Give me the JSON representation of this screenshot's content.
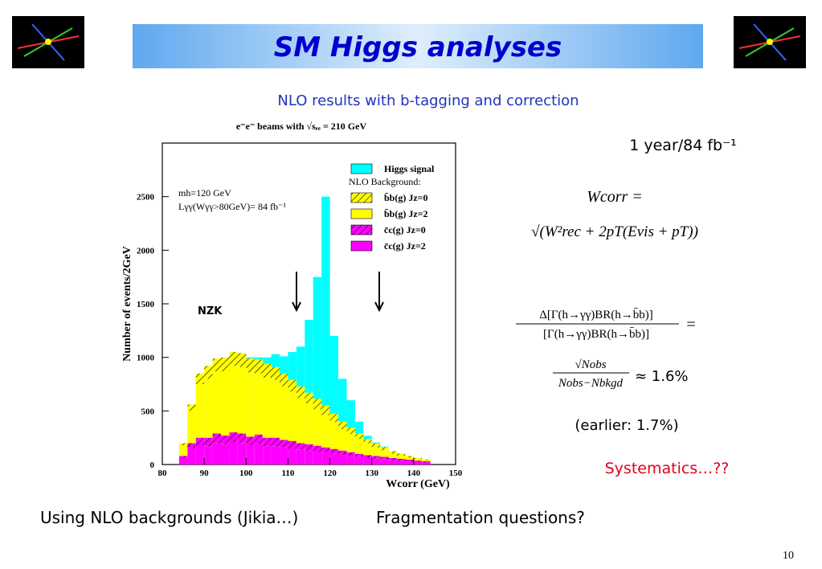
{
  "header": {
    "title": "SM Higgs analyses"
  },
  "figure": {
    "title": "NLO results with b-tagging and correction"
  },
  "chart_data": {
    "type": "histogram",
    "title": "e⁻e⁻ beams with √sₑₑ = 210 GeV",
    "x_label": "Wcorr (GeV)",
    "y_label": "Number of events/2GeV",
    "stacked": true,
    "bins": [
      84,
      86,
      88,
      90,
      92,
      94,
      96,
      98,
      100,
      102,
      104,
      106,
      108,
      110,
      112,
      114,
      116,
      118,
      120,
      122,
      124,
      126,
      128,
      130,
      132,
      134,
      136,
      138,
      140,
      142,
      144
    ],
    "series": [
      {
        "name": "c̄c(g) Jz=2",
        "color": "#ff00ff",
        "hatch": false,
        "values": [
          60,
          150,
          180,
          170,
          200,
          190,
          210,
          200,
          180,
          190,
          170,
          170,
          160,
          150,
          140,
          130,
          120,
          110,
          100,
          90,
          80,
          70,
          60,
          55,
          50,
          40,
          35,
          30,
          25,
          20
        ]
      },
      {
        "name": "c̄c(g) Jz=0",
        "color": "#ff00ff",
        "hatch": true,
        "values": [
          20,
          50,
          70,
          80,
          90,
          80,
          90,
          90,
          80,
          90,
          80,
          80,
          70,
          70,
          60,
          60,
          55,
          50,
          45,
          40,
          35,
          30,
          28,
          25,
          22,
          20,
          18,
          15,
          12,
          10
        ]
      },
      {
        "name": "b̄b(g) Jz=2",
        "color": "#ffff00",
        "hatch": false,
        "values": [
          100,
          300,
          500,
          550,
          580,
          600,
          620,
          620,
          600,
          570,
          560,
          540,
          500,
          460,
          420,
          380,
          340,
          300,
          250,
          200,
          170,
          140,
          110,
          80,
          60,
          40,
          30,
          20,
          15,
          10
        ]
      },
      {
        "name": "b̄b(g) Jz=0",
        "color": "#ffff00",
        "hatch": true,
        "values": [
          20,
          60,
          100,
          120,
          120,
          130,
          130,
          130,
          130,
          130,
          130,
          120,
          120,
          110,
          110,
          100,
          100,
          90,
          80,
          70,
          60,
          50,
          40,
          35,
          30,
          25,
          20,
          15,
          10,
          8
        ]
      },
      {
        "name": "Higgs signal",
        "color": "#00ffff",
        "hatch": false,
        "values": [
          0,
          0,
          0,
          0,
          0,
          0,
          0,
          0,
          10,
          20,
          60,
          120,
          160,
          260,
          370,
          680,
          1135,
          1950,
          725,
          400,
          255,
          110,
          30,
          10,
          5,
          0,
          0,
          0,
          0,
          0
        ]
      }
    ],
    "legend_title": "NLO Background:",
    "annotations": [
      "mh=120 GeV",
      "Lγγ(Wγγ>80GeV)= 84 fb⁻¹",
      "NZK"
    ],
    "xlim": [
      80,
      150
    ],
    "xticks": [
      80,
      90,
      100,
      110,
      120,
      130,
      140,
      150
    ],
    "ylim": [
      0,
      3000
    ],
    "yticks": [
      0,
      500,
      1000,
      1500,
      2000,
      2500
    ]
  },
  "side": {
    "luminosity": "1 year/84 fb⁻¹",
    "wcorr_lhs": "Wcorr =",
    "wcorr_rhs": "√(W²rec + 2pT(Evis + pT))",
    "error_num": "Δ[Γ(h→γγ)BR(h→b̄b)]",
    "error_den": "[Γ(h→γγ)BR(h→b̄b)]",
    "error_eq": "=",
    "stat_num": "√Nobs",
    "stat_den": "Nobs−Nbkgd",
    "stat_result": "≈ 1.6%",
    "earlier": "(earlier: 1.7%)",
    "systematics": "Systematics…??"
  },
  "footer": {
    "notes": [
      "Using NLO backgrounds (Jikia…)",
      "Fragmentation questions?"
    ],
    "page": "10"
  }
}
